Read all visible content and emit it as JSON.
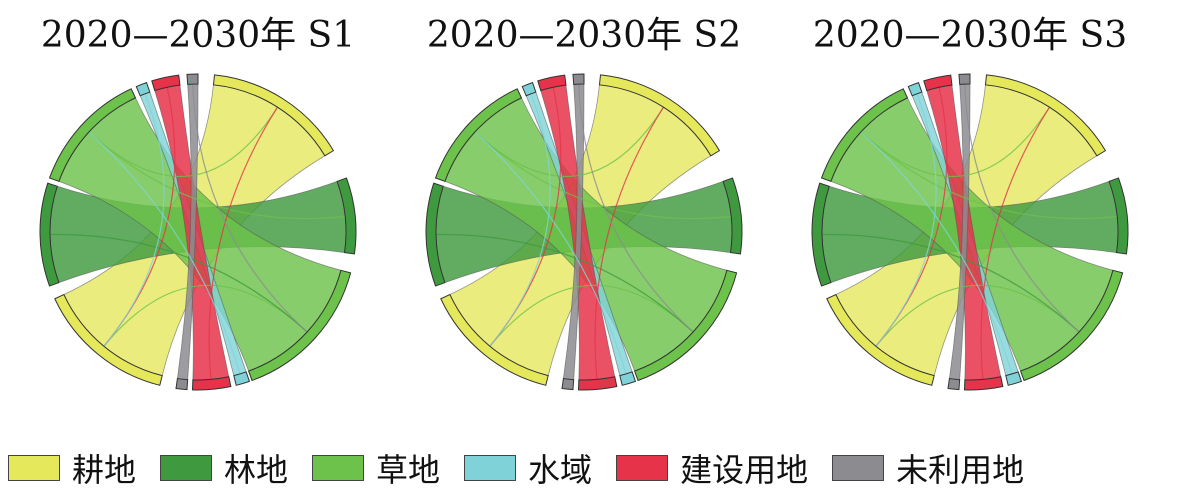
{
  "categories": [
    {
      "key": "cropland",
      "name": "耕地",
      "color": "#e4e85a"
    },
    {
      "key": "forest",
      "name": "林地",
      "color": "#3f9a3f"
    },
    {
      "key": "grassland",
      "name": "草地",
      "color": "#6cc24a"
    },
    {
      "key": "water",
      "name": "水域",
      "color": "#7fd3d8"
    },
    {
      "key": "construction",
      "name": "建设用地",
      "color": "#e6334a"
    },
    {
      "key": "unused",
      "name": "未利用地",
      "color": "#8c8c90"
    }
  ],
  "panels": [
    {
      "title": "2020—2030年 S1"
    },
    {
      "title": "2020—2030年 S2"
    },
    {
      "title": "2020—2030年 S3"
    }
  ]
}
